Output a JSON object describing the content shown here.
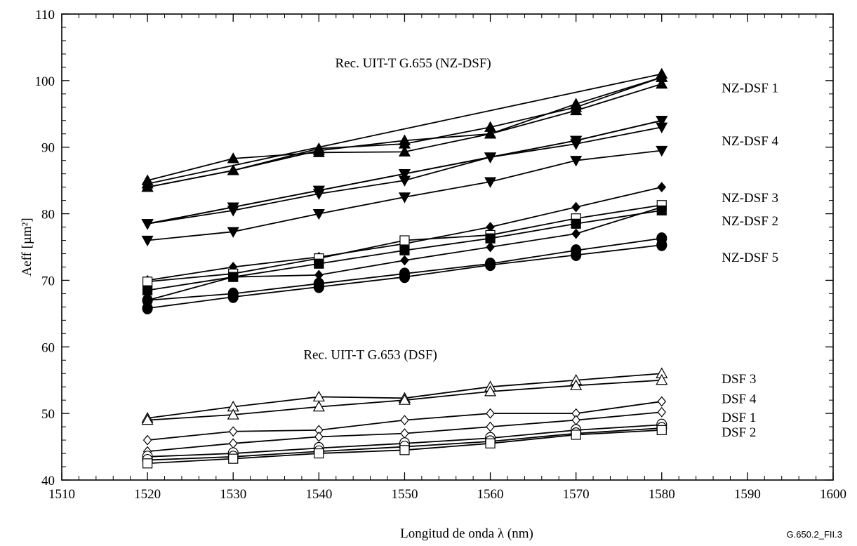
{
  "chart_data": {
    "type": "line",
    "xlabel": "Longitud de onda λ (nm)",
    "ylabel": "Aeff [µm²]",
    "figure_id": "G.650.2_FII.3",
    "xlim": [
      1510,
      1600
    ],
    "ylim": [
      40,
      110
    ],
    "xticks": [
      1510,
      1520,
      1530,
      1540,
      1550,
      1560,
      1570,
      1580,
      1590,
      1600
    ],
    "yticks": [
      40,
      50,
      60,
      70,
      80,
      90,
      100,
      110
    ],
    "grid": false,
    "x": [
      1520,
      1530,
      1540,
      1550,
      1560,
      1570,
      1580
    ],
    "groups": [
      {
        "label": "Rec. UIT-T G.655 (NZ-DSF)",
        "x": 1551,
        "y": 102
      },
      {
        "label": "Rec. UIT-T G.653 (DSF)",
        "x": 1546,
        "y": 58.2
      }
    ],
    "annotations": [
      {
        "text": "NZ-DSF 1",
        "x": 1587,
        "y": 99
      },
      {
        "text": "NZ-DSF 4",
        "x": 1587,
        "y": 91
      },
      {
        "text": "NZ-DSF 3",
        "x": 1587,
        "y": 82.5
      },
      {
        "text": "NZ-DSF 2",
        "x": 1587,
        "y": 79
      },
      {
        "text": "NZ-DSF 5",
        "x": 1587,
        "y": 73.5
      },
      {
        "text": "DSF 3",
        "x": 1587,
        "y": 55.3
      },
      {
        "text": "DSF 4",
        "x": 1587,
        "y": 52.3
      },
      {
        "text": "DSF 1",
        "x": 1587,
        "y": 49.5
      },
      {
        "text": "DSF 2",
        "x": 1587,
        "y": 47.3
      }
    ],
    "series": [
      {
        "marker": "triangle-up-filled",
        "values": [
          85.0,
          88.3,
          89.2,
          89.3,
          92.0,
          95.5,
          99.5
        ]
      },
      {
        "marker": "triangle-up-filled",
        "values": [
          84.0,
          86.5,
          89.5,
          91.0,
          92.0,
          96.5,
          100.5
        ]
      },
      {
        "marker": "triangle-up-filled",
        "values": [
          84.0,
          86.5,
          89.8,
          90.5,
          93.0,
          96.0,
          100.5
        ]
      },
      {
        "marker": "triangle-up-filled",
        "values": [
          84.5,
          null,
          null,
          null,
          null,
          null,
          101.0
        ]
      },
      {
        "marker": "triangle-down-filled",
        "values": [
          78.5,
          81.0,
          83.5,
          86.0,
          88.5,
          91.0,
          94.0
        ]
      },
      {
        "marker": "triangle-down-filled",
        "values": [
          78.5,
          80.5,
          83.0,
          85.0,
          88.5,
          90.5,
          93.0
        ]
      },
      {
        "marker": "triangle-down-filled",
        "values": [
          78.5,
          81.0,
          83.5,
          86.0,
          88.5,
          91.0,
          94.0
        ]
      },
      {
        "marker": "triangle-down-filled",
        "values": [
          76.0,
          77.3,
          80.0,
          82.5,
          84.8,
          88.0,
          89.5
        ]
      },
      {
        "marker": "diamond-filled",
        "values": [
          67.0,
          70.5,
          70.8,
          73.0,
          75.0,
          77.0,
          81.0
        ]
      },
      {
        "marker": "diamond-filled",
        "values": [
          70.0,
          72.0,
          73.5,
          75.5,
          78.0,
          81.0,
          84.0
        ]
      },
      {
        "marker": "square-open",
        "values": [
          69.8,
          71.0,
          73.3,
          76.0,
          76.8,
          79.3,
          81.3
        ]
      },
      {
        "marker": "square-filled",
        "values": [
          68.5,
          70.5,
          72.5,
          74.5,
          76.3,
          78.5,
          80.5
        ]
      },
      {
        "marker": "circle-filled",
        "values": [
          67.0,
          68.0,
          69.5,
          71.0,
          72.5,
          74.5,
          76.3
        ]
      },
      {
        "marker": "circle-filled",
        "values": [
          65.8,
          67.5,
          69.0,
          70.5,
          72.3,
          73.8,
          75.3
        ]
      },
      {
        "marker": "triangle-up-open",
        "values": [
          49.3,
          51.0,
          52.5,
          52.3,
          54.0,
          55.0,
          56.0
        ]
      },
      {
        "marker": "triangle-up-open",
        "values": [
          49.0,
          49.8,
          51.0,
          52.0,
          53.3,
          54.2,
          55.0
        ]
      },
      {
        "marker": "diamond-open",
        "values": [
          46.0,
          47.3,
          47.5,
          49.0,
          50.0,
          50.0,
          51.8
        ]
      },
      {
        "marker": "diamond-open",
        "values": [
          44.3,
          45.5,
          46.5,
          47.0,
          48.0,
          49.0,
          50.2
        ]
      },
      {
        "marker": "circle-open",
        "values": [
          43.5,
          44.0,
          44.8,
          45.5,
          46.3,
          47.5,
          48.3
        ]
      },
      {
        "marker": "circle-open",
        "values": [
          43.0,
          43.5,
          44.3,
          45.0,
          45.8,
          47.0,
          47.8
        ]
      },
      {
        "marker": "square-open",
        "values": [
          42.5,
          43.2,
          44.0,
          44.5,
          45.5,
          46.8,
          47.5
        ]
      }
    ]
  }
}
